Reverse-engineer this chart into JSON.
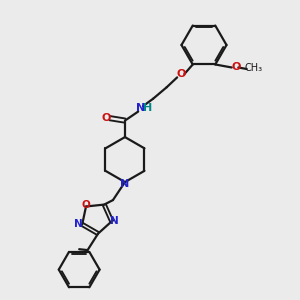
{
  "bg_color": "#ebebeb",
  "bond_color": "#1a1a1a",
  "N_color": "#2222cc",
  "O_color": "#cc1111",
  "H_color": "#008888",
  "figsize": [
    3.0,
    3.0
  ],
  "dpi": 100,
  "xlim": [
    0,
    10
  ],
  "ylim": [
    0,
    10
  ]
}
